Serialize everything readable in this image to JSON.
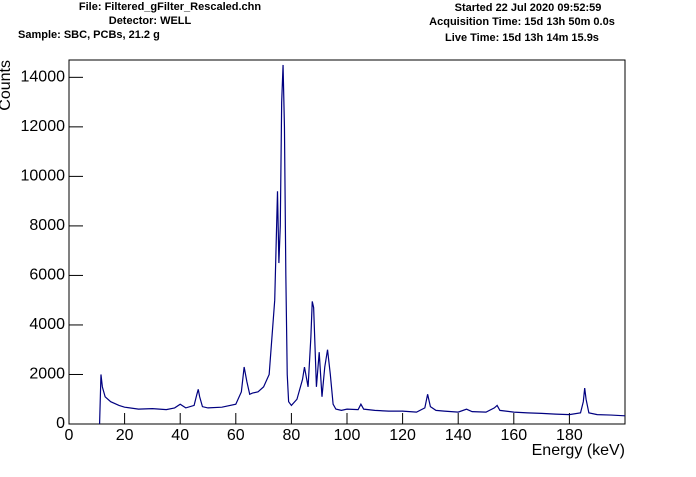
{
  "header": {
    "file": "File: Filtered_gFilter_Rescaled.chn",
    "detector": "Detector: WELL",
    "sample": "Sample: SBC, PCBs, 21.2 g",
    "started": "Started 22 Jul 2020 09:52:59",
    "acquisition": "Acquisition Time: 15d 13h 50m 0.0s",
    "live": "Live Time: 15d 13h 14m 15.9s"
  },
  "chart_data": {
    "type": "line",
    "x_label": "Energy (keV)",
    "y_label": "Counts",
    "x": [
      11,
      11.5,
      12,
      13,
      15,
      18,
      20,
      25,
      30,
      35,
      38,
      40,
      42,
      45,
      46,
      46.5,
      47,
      48,
      50,
      55,
      60,
      62,
      63,
      64,
      65,
      66,
      68,
      70,
      72,
      74,
      75,
      75.5,
      76,
      76.5,
      77,
      77.5,
      78,
      78.5,
      79,
      80,
      82,
      84,
      84.7,
      86,
      87,
      87.5,
      88,
      89,
      90,
      91,
      92,
      93,
      94,
      95,
      96,
      98,
      100,
      104,
      105,
      106,
      110,
      115,
      120,
      125,
      128,
      129,
      130,
      132,
      135,
      140,
      143,
      145,
      150,
      153,
      154,
      155,
      160,
      165,
      170,
      175,
      180,
      184,
      185,
      185.5,
      186,
      187,
      190,
      195,
      200
    ],
    "series": [
      {
        "name": "Counts",
        "color": "#000080",
        "values": [
          0,
          2000,
          1500,
          1100,
          900,
          750,
          680,
          600,
          620,
          580,
          650,
          800,
          650,
          750,
          1200,
          1400,
          1100,
          700,
          650,
          680,
          800,
          1300,
          2300,
          1700,
          1200,
          1250,
          1300,
          1500,
          2000,
          5000,
          9400,
          6500,
          8000,
          13000,
          14500,
          12000,
          6000,
          2000,
          900,
          750,
          1000,
          1800,
          2300,
          1500,
          3500,
          4950,
          4700,
          1500,
          2900,
          1100,
          2300,
          3000,
          2000,
          800,
          600,
          550,
          600,
          580,
          800,
          600,
          550,
          520,
          520,
          480,
          650,
          1200,
          700,
          550,
          520,
          480,
          600,
          500,
          480,
          650,
          750,
          550,
          480,
          450,
          430,
          400,
          380,
          450,
          900,
          1450,
          1000,
          450,
          380,
          360,
          330
        ]
      }
    ],
    "xlim": [
      0,
      200
    ],
    "ylim": [
      0,
      14700
    ],
    "xticks": [
      0,
      20,
      40,
      60,
      80,
      100,
      120,
      140,
      160,
      180
    ],
    "yticks": [
      0,
      2000,
      4000,
      6000,
      8000,
      10000,
      12000,
      14000
    ]
  }
}
